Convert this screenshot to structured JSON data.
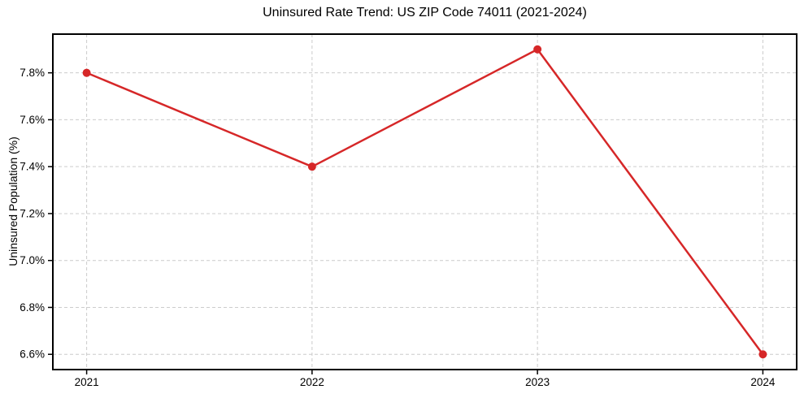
{
  "chart_data": {
    "type": "line",
    "title": "Uninsured Rate Trend: US ZIP Code 74011 (2021-2024)",
    "xlabel": "",
    "ylabel": "Uninsured Population (%)",
    "x": [
      2021,
      2022,
      2023,
      2024
    ],
    "values": [
      7.8,
      7.4,
      7.9,
      6.6
    ],
    "x_tick_labels": [
      "2021",
      "2022",
      "2023",
      "2024"
    ],
    "y_ticks": [
      6.6,
      6.8,
      7.0,
      7.2,
      7.4,
      7.6,
      7.8
    ],
    "y_tick_labels": [
      "6.6%",
      "6.8%",
      "7.0%",
      "7.2%",
      "7.4%",
      "7.6%",
      "7.8%"
    ],
    "xlim": [
      2020.85,
      2024.15
    ],
    "ylim": [
      6.535,
      7.965
    ],
    "grid": true,
    "grid_style": "dashed",
    "legend": "none",
    "line_color": "#d62728",
    "marker": "circle",
    "grid_color": "#cccccc",
    "axis_color": "#000000",
    "text_color": "#000000",
    "background_color": "#ffffff"
  }
}
